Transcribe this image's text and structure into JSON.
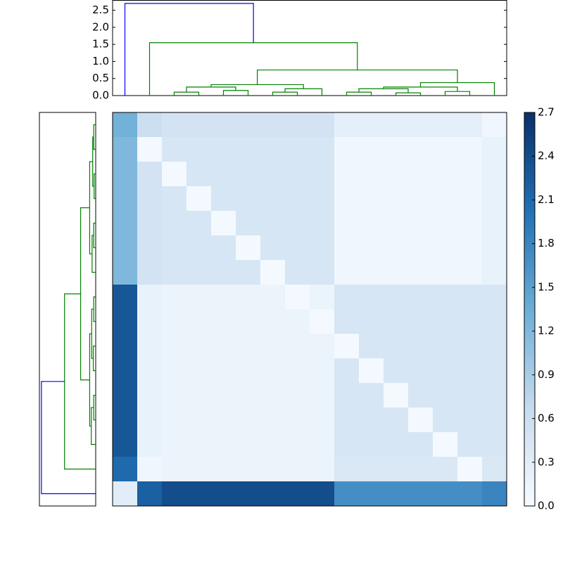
{
  "chart_data": [
    {
      "type": "dendrogram",
      "orientation": "top",
      "ylim": [
        0,
        2.8
      ],
      "yticks": [
        {
          "value": 0,
          "label": "0.0"
        },
        0.5,
        {
          "value": 1,
          "label": "1.0"
        },
        1.5,
        {
          "value": 2,
          "label": "2.0"
        },
        2.5
      ],
      "leaf_range": [
        0,
        16
      ],
      "links": [
        {
          "leaf": [
            2.5,
            2.5,
            3.5,
            3.5
          ],
          "height": [
            0,
            0.1,
            0.1,
            0
          ],
          "color": "#008000"
        },
        {
          "leaf": [
            4.5,
            4.5,
            5.5,
            5.5
          ],
          "height": [
            0,
            0.15,
            0.15,
            0
          ],
          "color": "#008000"
        },
        {
          "leaf": [
            3,
            3,
            5,
            5
          ],
          "height": [
            0.1,
            0.25,
            0.25,
            0.15
          ],
          "color": "#008000"
        },
        {
          "leaf": [
            6.5,
            6.5,
            7.5,
            7.5
          ],
          "height": [
            0,
            0.1,
            0.1,
            0
          ],
          "color": "#008000"
        },
        {
          "leaf": [
            7,
            7,
            8.5,
            8.5
          ],
          "height": [
            0.1,
            0.2,
            0.2,
            0
          ],
          "color": "#008000"
        },
        {
          "leaf": [
            4,
            4,
            7.75,
            7.75
          ],
          "height": [
            0.25,
            0.32,
            0.32,
            0.2
          ],
          "color": "#008000"
        },
        {
          "leaf": [
            9.5,
            9.5,
            10.5,
            10.5
          ],
          "height": [
            0,
            0.1,
            0.1,
            0
          ],
          "color": "#008000"
        },
        {
          "leaf": [
            11.5,
            11.5,
            12.5,
            12.5
          ],
          "height": [
            0,
            0.08,
            0.08,
            0
          ],
          "color": "#008000"
        },
        {
          "leaf": [
            10,
            10,
            12,
            12
          ],
          "height": [
            0.1,
            0.2,
            0.2,
            0.08
          ],
          "color": "#008000"
        },
        {
          "leaf": [
            13.5,
            13.5,
            14.5,
            14.5
          ],
          "height": [
            0,
            0.12,
            0.12,
            0
          ],
          "color": "#008000"
        },
        {
          "leaf": [
            11,
            11,
            14,
            14
          ],
          "height": [
            0.2,
            0.25,
            0.25,
            0.12
          ],
          "color": "#008000"
        },
        {
          "leaf": [
            12.5,
            12.5,
            15.5,
            15.5
          ],
          "height": [
            0.25,
            0.38,
            0.38,
            0
          ],
          "color": "#008000"
        },
        {
          "leaf": [
            5.875,
            5.875,
            14,
            14
          ],
          "height": [
            0.32,
            0.75,
            0.75,
            0.38
          ],
          "color": "#008000"
        },
        {
          "leaf": [
            1.5,
            1.5,
            9.9375,
            9.9375
          ],
          "height": [
            0,
            1.55,
            1.55,
            0.75
          ],
          "color": "#008000"
        },
        {
          "leaf": [
            0.5,
            0.5,
            5.71875,
            5.71875
          ],
          "height": [
            0,
            2.7,
            2.7,
            1.55
          ],
          "color": "#0000ff"
        }
      ]
    },
    {
      "type": "dendrogram",
      "orientation": "left",
      "xlim": [
        2.8,
        0
      ],
      "leaf_range": [
        0,
        16
      ],
      "links": [
        {
          "leaf": [
            0.5,
            0.5,
            1.5,
            1.5
          ],
          "height": [
            0,
            0.1,
            0.1,
            0
          ],
          "color": "#008000"
        },
        {
          "leaf": [
            2.5,
            2.5,
            3.5,
            3.5
          ],
          "height": [
            0,
            0.08,
            0.08,
            0
          ],
          "color": "#008000"
        },
        {
          "leaf": [
            1,
            1,
            3,
            3
          ],
          "height": [
            0.1,
            0.15,
            0.15,
            0.08
          ],
          "color": "#008000"
        },
        {
          "leaf": [
            4.5,
            4.5,
            5.5,
            5.5
          ],
          "height": [
            0,
            0.1,
            0.1,
            0
          ],
          "color": "#008000"
        },
        {
          "leaf": [
            5,
            5,
            6.5,
            6.5
          ],
          "height": [
            0.1,
            0.18,
            0.18,
            0
          ],
          "color": "#008000"
        },
        {
          "leaf": [
            2,
            2,
            5.75,
            5.75
          ],
          "height": [
            0.15,
            0.3,
            0.3,
            0.18
          ],
          "color": "#008000"
        },
        {
          "leaf": [
            7.5,
            7.5,
            8.5,
            8.5
          ],
          "height": [
            0,
            0.1,
            0.1,
            0
          ],
          "color": "#008000"
        },
        {
          "leaf": [
            9.5,
            9.5,
            10.5,
            10.5
          ],
          "height": [
            0,
            0.12,
            0.12,
            0
          ],
          "color": "#008000"
        },
        {
          "leaf": [
            8,
            8,
            10,
            10
          ],
          "height": [
            0.1,
            0.2,
            0.2,
            0.12
          ],
          "color": "#008000"
        },
        {
          "leaf": [
            11.5,
            11.5,
            12.5,
            12.5
          ],
          "height": [
            0,
            0.1,
            0.1,
            0
          ],
          "color": "#008000"
        },
        {
          "leaf": [
            12,
            12,
            13.5,
            13.5
          ],
          "height": [
            0.1,
            0.22,
            0.22,
            0
          ],
          "color": "#008000"
        },
        {
          "leaf": [
            9,
            9,
            12.75,
            12.75
          ],
          "height": [
            0.2,
            0.3,
            0.3,
            0.22
          ],
          "color": "#008000"
        },
        {
          "leaf": [
            3.875,
            3.875,
            10.875,
            10.875
          ],
          "height": [
            0.3,
            0.75,
            0.75,
            0.3
          ],
          "color": "#008000"
        },
        {
          "leaf": [
            7.375,
            7.375,
            14.5,
            14.5
          ],
          "height": [
            0.75,
            1.55,
            1.55,
            0
          ],
          "color": "#008000"
        },
        {
          "leaf": [
            10.9375,
            10.9375,
            15.5,
            15.5
          ],
          "height": [
            1.55,
            2.7,
            2.7,
            0
          ],
          "color": "#0000ff"
        }
      ]
    },
    {
      "type": "heatmap",
      "clim": [
        0,
        2.7
      ],
      "colormap": [
        "#f7fbff",
        "#c6dbef",
        "#6baed6",
        "#2171b5",
        "#08306b"
      ],
      "cticks": [
        {
          "value": 0,
          "label": "0.0"
        },
        0.3,
        0.6,
        0.9,
        1.2,
        1.5,
        1.8,
        2.1,
        2.4,
        2.7
      ],
      "values": [
        [
          1.3,
          0.6,
          0.5,
          0.5,
          0.5,
          0.5,
          0.5,
          0.5,
          0.5,
          0.25,
          0.25,
          0.25,
          0.25,
          0.25,
          0.25,
          0.1
        ],
        [
          1.2,
          0.05,
          0.45,
          0.45,
          0.45,
          0.45,
          0.45,
          0.45,
          0.45,
          0.1,
          0.1,
          0.1,
          0.1,
          0.1,
          0.1,
          0.2
        ],
        [
          1.2,
          0.5,
          0.05,
          0.45,
          0.45,
          0.45,
          0.45,
          0.45,
          0.45,
          0.1,
          0.1,
          0.1,
          0.1,
          0.1,
          0.1,
          0.2
        ],
        [
          1.2,
          0.5,
          0.45,
          0.05,
          0.45,
          0.45,
          0.45,
          0.45,
          0.45,
          0.1,
          0.1,
          0.1,
          0.1,
          0.1,
          0.1,
          0.2
        ],
        [
          1.2,
          0.5,
          0.45,
          0.45,
          0.05,
          0.45,
          0.45,
          0.45,
          0.45,
          0.1,
          0.1,
          0.1,
          0.1,
          0.1,
          0.1,
          0.2
        ],
        [
          1.2,
          0.5,
          0.45,
          0.45,
          0.45,
          0.05,
          0.45,
          0.45,
          0.45,
          0.1,
          0.1,
          0.1,
          0.1,
          0.1,
          0.1,
          0.2
        ],
        [
          1.2,
          0.5,
          0.45,
          0.45,
          0.45,
          0.45,
          0.05,
          0.45,
          0.45,
          0.1,
          0.1,
          0.1,
          0.1,
          0.1,
          0.1,
          0.2
        ],
        [
          2.3,
          0.2,
          0.15,
          0.15,
          0.15,
          0.15,
          0.15,
          0.05,
          0.15,
          0.45,
          0.45,
          0.45,
          0.45,
          0.45,
          0.45,
          0.45
        ],
        [
          2.3,
          0.2,
          0.15,
          0.15,
          0.15,
          0.15,
          0.15,
          0.15,
          0.05,
          0.45,
          0.45,
          0.45,
          0.45,
          0.45,
          0.45,
          0.45
        ],
        [
          2.3,
          0.2,
          0.15,
          0.15,
          0.15,
          0.15,
          0.15,
          0.15,
          0.15,
          0.05,
          0.45,
          0.45,
          0.45,
          0.45,
          0.45,
          0.45
        ],
        [
          2.3,
          0.2,
          0.15,
          0.15,
          0.15,
          0.15,
          0.15,
          0.15,
          0.15,
          0.45,
          0.05,
          0.45,
          0.45,
          0.45,
          0.45,
          0.45
        ],
        [
          2.3,
          0.2,
          0.15,
          0.15,
          0.15,
          0.15,
          0.15,
          0.15,
          0.15,
          0.45,
          0.45,
          0.05,
          0.45,
          0.45,
          0.45,
          0.45
        ],
        [
          2.3,
          0.2,
          0.15,
          0.15,
          0.15,
          0.15,
          0.15,
          0.15,
          0.15,
          0.45,
          0.45,
          0.45,
          0.05,
          0.45,
          0.45,
          0.45
        ],
        [
          2.3,
          0.2,
          0.15,
          0.15,
          0.15,
          0.15,
          0.15,
          0.15,
          0.15,
          0.45,
          0.45,
          0.45,
          0.45,
          0.05,
          0.45,
          0.45
        ],
        [
          2.1,
          0.1,
          0.15,
          0.15,
          0.15,
          0.15,
          0.15,
          0.15,
          0.15,
          0.4,
          0.4,
          0.4,
          0.4,
          0.4,
          0.05,
          0.4
        ],
        [
          0.3,
          2.2,
          2.4,
          2.4,
          2.4,
          2.4,
          2.4,
          2.4,
          2.4,
          1.7,
          1.7,
          1.7,
          1.7,
          1.7,
          1.7,
          1.8
        ]
      ]
    }
  ]
}
